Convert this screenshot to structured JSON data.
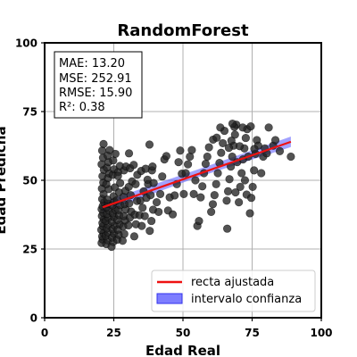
{
  "chart_data": {
    "type": "scatter",
    "title": "RandomForest",
    "xlabel": "Edad Real",
    "ylabel": "Edad Predicha",
    "xlim": [
      0,
      100
    ],
    "ylim": [
      0,
      100
    ],
    "xticks": [
      "0",
      "25",
      "50",
      "75",
      "100"
    ],
    "yticks": [
      "0",
      "25",
      "50",
      "75",
      "100"
    ],
    "grid": true,
    "stats": [
      "MAE: 13.20",
      "MSE: 252.91",
      "RMSE: 15.90",
      "R²: 0.38"
    ],
    "legend": {
      "position": "bottom-right",
      "entries": [
        "recta ajustada",
        "intervalo confianza"
      ]
    },
    "fit_line": {
      "x": [
        21,
        89
      ],
      "y": [
        40.2,
        64.0
      ]
    },
    "confidence_band": {
      "x": [
        21,
        55,
        89
      ],
      "lower": [
        38.3,
        51.0,
        62.1
      ],
      "upper": [
        42.1,
        53.8,
        65.9
      ]
    },
    "colors": {
      "points": "#222222",
      "fit_line": "#ee1111",
      "band": "#5555ff"
    },
    "points": [
      [
        20.6,
        27.2
      ],
      [
        21.0,
        28.5
      ],
      [
        20.8,
        29.6
      ],
      [
        21.3,
        30.8
      ],
      [
        20.5,
        32.0
      ],
      [
        21.1,
        33.3
      ],
      [
        20.9,
        34.5
      ],
      [
        21.4,
        35.8
      ],
      [
        20.7,
        37.0
      ],
      [
        21.2,
        38.2
      ],
      [
        20.6,
        39.5
      ],
      [
        21.0,
        40.6
      ],
      [
        21.5,
        42.0
      ],
      [
        20.8,
        43.2
      ],
      [
        21.3,
        45.0
      ],
      [
        20.7,
        47.0
      ],
      [
        21.2,
        49.2
      ],
      [
        20.9,
        51.5
      ],
      [
        21.4,
        53.8
      ],
      [
        20.6,
        55.8
      ],
      [
        21.1,
        58.2
      ],
      [
        20.8,
        60.8
      ],
      [
        21.3,
        63.2
      ],
      [
        22.3,
        26.8
      ],
      [
        22.8,
        28.2
      ],
      [
        22.1,
        29.8
      ],
      [
        23.0,
        31.0
      ],
      [
        22.5,
        32.5
      ],
      [
        22.9,
        33.8
      ],
      [
        22.2,
        35.3
      ],
      [
        23.1,
        36.4
      ],
      [
        22.6,
        37.8
      ],
      [
        23.3,
        39.0
      ],
      [
        22.4,
        40.2
      ],
      [
        23.0,
        41.5
      ],
      [
        22.7,
        43.0
      ],
      [
        23.2,
        46.8
      ],
      [
        22.3,
        48.6
      ],
      [
        22.9,
        50.8
      ],
      [
        23.4,
        52.5
      ],
      [
        22.5,
        54.6
      ],
      [
        23.1,
        56.6
      ],
      [
        22.8,
        59.0
      ],
      [
        23.5,
        61.0
      ],
      [
        24.2,
        25.8
      ],
      [
        24.8,
        27.6
      ],
      [
        24.4,
        29.2
      ],
      [
        25.0,
        30.6
      ],
      [
        24.6,
        32.2
      ],
      [
        25.3,
        33.5
      ],
      [
        24.3,
        35.0
      ],
      [
        25.1,
        36.6
      ],
      [
        24.7,
        38.0
      ],
      [
        25.5,
        39.3
      ],
      [
        24.5,
        40.9
      ],
      [
        25.2,
        42.2
      ],
      [
        24.9,
        44.2
      ],
      [
        25.4,
        47.4
      ],
      [
        24.6,
        52.0
      ],
      [
        25.1,
        54.0
      ],
      [
        24.8,
        57.2
      ],
      [
        25.6,
        59.6
      ],
      [
        26.3,
        28.4
      ],
      [
        26.8,
        30.2
      ],
      [
        26.5,
        32.1
      ],
      [
        27.1,
        34.0
      ],
      [
        26.4,
        35.6
      ],
      [
        27.0,
        37.3
      ],
      [
        26.7,
        39.2
      ],
      [
        27.4,
        41.0
      ],
      [
        26.2,
        42.8
      ],
      [
        26.9,
        45.6
      ],
      [
        27.3,
        49.0
      ],
      [
        26.6,
        53.0
      ],
      [
        27.2,
        55.2
      ],
      [
        26.5,
        51.6
      ],
      [
        28.2,
        28.0
      ],
      [
        28.8,
        30.5
      ],
      [
        28.4,
        33.2
      ],
      [
        29.1,
        35.4
      ],
      [
        28.6,
        37.0
      ],
      [
        29.3,
        39.4
      ],
      [
        28.9,
        41.3
      ],
      [
        28.5,
        44.0
      ],
      [
        29.2,
        46.2
      ],
      [
        28.7,
        53.6
      ],
      [
        29.4,
        55.0
      ],
      [
        30.3,
        33.6
      ],
      [
        30.8,
        36.4
      ],
      [
        31.3,
        38.6
      ],
      [
        30.6,
        41.6
      ],
      [
        31.1,
        44.6
      ],
      [
        30.4,
        47.6
      ],
      [
        31.6,
        49.6
      ],
      [
        30.9,
        54.4
      ],
      [
        30.5,
        59.8
      ],
      [
        32.4,
        29.6
      ],
      [
        33.0,
        34.0
      ],
      [
        32.6,
        37.5
      ],
      [
        33.4,
        42.5
      ],
      [
        32.9,
        48.6
      ],
      [
        33.5,
        52.0
      ],
      [
        32.2,
        55.6
      ],
      [
        34.3,
        37.3
      ],
      [
        35.1,
        33.4
      ],
      [
        35.4,
        40.0
      ],
      [
        34.6,
        42.6
      ],
      [
        35.8,
        46.0
      ],
      [
        34.9,
        53.4
      ],
      [
        36.2,
        37.0
      ],
      [
        36.8,
        43.6
      ],
      [
        37.4,
        48.6
      ],
      [
        36.5,
        54.2
      ],
      [
        37.2,
        50.2
      ],
      [
        38.0,
        31.6
      ],
      [
        38.6,
        35.2
      ],
      [
        39.2,
        39.3
      ],
      [
        38.3,
        44.6
      ],
      [
        39.4,
        49.0
      ],
      [
        38.8,
        53.6
      ],
      [
        39.0,
        55.0
      ],
      [
        37.9,
        63.0
      ],
      [
        40.5,
        42.0
      ],
      [
        41.2,
        38.5
      ],
      [
        41.8,
        45.0
      ],
      [
        42.5,
        51.4
      ],
      [
        43.3,
        57.6
      ],
      [
        44.0,
        58.8
      ],
      [
        44.6,
        39.0
      ],
      [
        45.2,
        43.8
      ],
      [
        46.3,
        37.6
      ],
      [
        47.0,
        44.5
      ],
      [
        47.8,
        48.6
      ],
      [
        48.4,
        56.6
      ],
      [
        49.0,
        60.8
      ],
      [
        49.6,
        52.4
      ],
      [
        50.3,
        45.0
      ],
      [
        51.0,
        52.6
      ],
      [
        51.8,
        55.8
      ],
      [
        52.5,
        58.6
      ],
      [
        53.2,
        61.0
      ],
      [
        53.9,
        45.0
      ],
      [
        54.5,
        50.0
      ],
      [
        55.2,
        33.4
      ],
      [
        55.8,
        35.2
      ],
      [
        56.4,
        43.8
      ],
      [
        57.0,
        47.8
      ],
      [
        57.6,
        52.6
      ],
      [
        58.2,
        56.0
      ],
      [
        58.8,
        58.6
      ],
      [
        59.4,
        62.0
      ],
      [
        60.2,
        38.5
      ],
      [
        60.8,
        41.3
      ],
      [
        61.4,
        44.6
      ],
      [
        62.0,
        48.6
      ],
      [
        62.6,
        52.6
      ],
      [
        63.2,
        56.3
      ],
      [
        63.8,
        60.0
      ],
      [
        64.4,
        63.5
      ],
      [
        65.0,
        68.0
      ],
      [
        60.9,
        64.8
      ],
      [
        62.2,
        65.5
      ],
      [
        63.5,
        69.2
      ],
      [
        65.8,
        42.6
      ],
      [
        66.3,
        46.0
      ],
      [
        66.8,
        50.4
      ],
      [
        67.3,
        55.0
      ],
      [
        67.8,
        58.6
      ],
      [
        68.3,
        62.6
      ],
      [
        68.8,
        66.6
      ],
      [
        69.3,
        70.2
      ],
      [
        66.0,
        32.4
      ],
      [
        66.6,
        61.8
      ],
      [
        67.5,
        64.4
      ],
      [
        68.6,
        69.4
      ],
      [
        69.0,
        45.6
      ],
      [
        69.6,
        56.6
      ],
      [
        67.9,
        70.6
      ],
      [
        70.2,
        42.0
      ],
      [
        70.7,
        47.6
      ],
      [
        71.2,
        52.6
      ],
      [
        71.7,
        57.6
      ],
      [
        72.2,
        61.6
      ],
      [
        72.7,
        65.4
      ],
      [
        73.2,
        68.6
      ],
      [
        70.5,
        62.4
      ],
      [
        71.6,
        69.2
      ],
      [
        72.4,
        50.0
      ],
      [
        73.0,
        44.8
      ],
      [
        73.6,
        58.6
      ],
      [
        74.2,
        38.0
      ],
      [
        74.7,
        43.6
      ],
      [
        75.2,
        47.6
      ],
      [
        75.7,
        53.6
      ],
      [
        76.2,
        59.6
      ],
      [
        76.7,
        64.6
      ],
      [
        77.2,
        62.6
      ],
      [
        74.5,
        69.6
      ],
      [
        75.8,
        61.4
      ],
      [
        78.3,
        52.6
      ],
      [
        79.0,
        58.6
      ],
      [
        79.6,
        61.6
      ],
      [
        80.3,
        59.8
      ],
      [
        81.0,
        69.2
      ],
      [
        82.6,
        62.6
      ],
      [
        83.4,
        64.6
      ],
      [
        85.0,
        60.6
      ],
      [
        89.0,
        58.6
      ]
    ]
  }
}
